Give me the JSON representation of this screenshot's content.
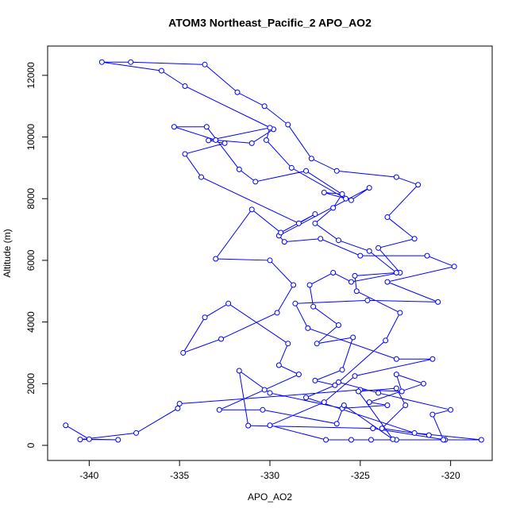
{
  "chart_data": {
    "type": "line",
    "marker": "circle",
    "color": "#0000ff",
    "title": "ATOM3 Northeast_Pacific_2 APO_AO2",
    "xlabel": "APO_AO2",
    "ylabel": "Altitude (m)",
    "xlim": [
      -342.3,
      -317.7
    ],
    "ylim": [
      -490,
      12950
    ],
    "xticks": [
      -340,
      -335,
      -330,
      -325,
      -320
    ],
    "yticks": [
      0,
      2000,
      4000,
      6000,
      8000,
      10000,
      12000
    ],
    "x": [
      -341.3,
      -340,
      -338.4,
      -340.5,
      -337.4,
      -335.1,
      -335,
      -325,
      -322.7,
      -323,
      -321.5,
      -324.5,
      -323.5,
      -326,
      -330,
      -331.7,
      -331.2,
      -324.3,
      -320.3,
      -318.3,
      -322,
      -328,
      -326.4,
      -327.5,
      -326,
      -325.4,
      -327.4,
      -326.2,
      -327.6,
      -327.8,
      -326.5,
      -325.5,
      -322.8,
      -324,
      -322,
      -323.5,
      -321.8,
      -323,
      -326.3,
      -327.7,
      -329,
      -330.3,
      -331.8,
      -333.6,
      -337.7,
      -339.3,
      -336,
      -334.7,
      -329.8,
      -331,
      -333,
      -335.3,
      -333.5,
      -331.7,
      -330.8,
      -328,
      -325.5,
      -324.5,
      -329.5,
      -329.2,
      -327.2,
      -325,
      -321.3,
      -319.8,
      -323.5,
      -320.7,
      -324.6,
      -328.6,
      -327.9,
      -323,
      -321,
      -325.3,
      -327,
      -330,
      -326.9,
      -325.5,
      -324.4,
      -323,
      -320.4,
      -321,
      -320,
      -324,
      -326.2,
      -323.6,
      -322.8,
      -325.2,
      -325.3,
      -323,
      -324.5,
      -326.2,
      -327.5,
      -326.5,
      -326,
      -327,
      -325.8,
      -328.8,
      -330.2,
      -330,
      -333.4,
      -332.5,
      -334.7,
      -333.8,
      -328.4,
      -327.5,
      -329.4,
      -331,
      -333,
      -330,
      -328.7,
      -329.6,
      -332.7,
      -334.8,
      -333.6,
      -332.3,
      -329,
      -329.5,
      -328.4,
      -330.3,
      -332.8,
      -330.4,
      -326.3,
      -325.9,
      -323.2,
      -325.1,
      -323,
      -322.5,
      -323.8,
      -321.2
    ],
    "values": [
      650,
      200,
      180,
      190,
      400,
      1200,
      1350,
      1800,
      1750,
      2300,
      2000,
      1400,
      1300,
      1200,
      1700,
      2420,
      640,
      550,
      180,
      180,
      400,
      1550,
      1950,
      2100,
      2450,
      3500,
      3300,
      3900,
      4500,
      5200,
      5600,
      5300,
      5600,
      6400,
      6700,
      7400,
      8450,
      8700,
      8900,
      9300,
      10400,
      11000,
      11450,
      12350,
      12430,
      12430,
      12150,
      11650,
      10250,
      9800,
      9900,
      10330,
      10330,
      8950,
      8550,
      8900,
      7950,
      8350,
      6800,
      6600,
      6700,
      6150,
      6150,
      5800,
      5300,
      4650,
      4700,
      4600,
      3800,
      2800,
      2800,
      2250,
      1400,
      650,
      180,
      180,
      180,
      180,
      180,
      1000,
      1150,
      1700,
      2050,
      3400,
      4300,
      5000,
      5500,
      5600,
      6300,
      6650,
      7200,
      7700,
      8150,
      8200,
      8000,
      9000,
      9900,
      10300,
      9890,
      9800,
      9450,
      8700,
      7200,
      7500,
      6900,
      7650,
      6050,
      6000,
      5200,
      4300,
      3450,
      3000,
      4150,
      4600,
      3300,
      2600,
      2300,
      1800,
      1150,
      1150,
      700,
      1300,
      200,
      1750,
      1850,
      1300,
      550,
      330
    ]
  }
}
